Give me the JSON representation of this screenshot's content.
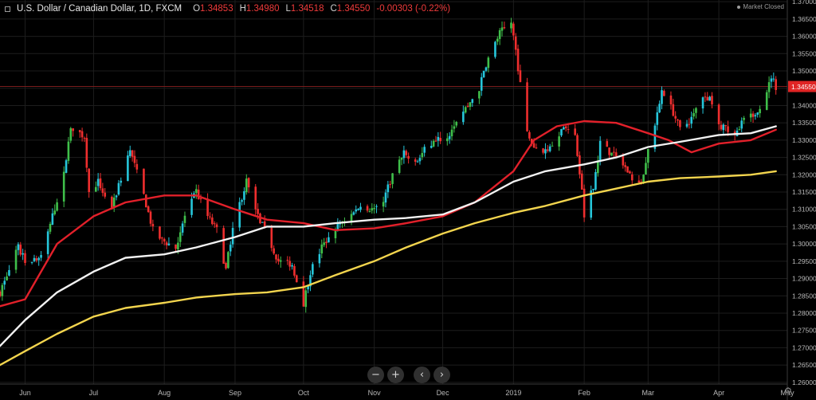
{
  "header": {
    "symbol": "U.S. Dollar / Canadian Dollar, 1D, FXCM",
    "open_label": "O",
    "open": "1.34853",
    "high_label": "H",
    "high": "1.34980",
    "low_label": "L",
    "low": "1.34518",
    "close_label": "C",
    "close": "1.34550",
    "change": "-0.00303 (-0.22%)"
  },
  "market_status": "Market Closed",
  "nav_buttons": {
    "zoom_out": "−",
    "zoom_in": "+",
    "scroll_left": "‹",
    "scroll_right": "›"
  },
  "colors": {
    "bg": "#000000",
    "up": "#3fbf4a",
    "up_alt": "#26c6da",
    "down": "#ef2e2e",
    "ma_red": "#e2202a",
    "ma_white": "#f2f2f2",
    "ma_yellow": "#f3d54e",
    "last_price_bg": "#e02424"
  },
  "chart_data": {
    "type": "candlestick",
    "title": "U.S. Dollar / Canadian Dollar, 1D, FXCM",
    "x_tick_labels": [
      "Jun",
      "Jul",
      "Aug",
      "Sep",
      "Oct",
      "Nov",
      "Dec",
      "2019",
      "Feb",
      "Mar",
      "Apr",
      "May"
    ],
    "y_tick_labels": [
      "1.37000",
      "1.36500",
      "1.36000",
      "1.35500",
      "1.35000",
      "1.34500",
      "1.34000",
      "1.33500",
      "1.33000",
      "1.32500",
      "1.32000",
      "1.31500",
      "1.31000",
      "1.30500",
      "1.30000",
      "1.29500",
      "1.29000",
      "1.28500",
      "1.28000",
      "1.27500",
      "1.27000",
      "1.26500",
      "1.26000"
    ],
    "ylim": [
      1.2595,
      1.3705
    ],
    "last_price": "1.34550",
    "last_price_value": 1.3455,
    "price_path": [
      {
        "d": "2018-05-21",
        "c": 1.286
      },
      {
        "d": "2018-05-29",
        "c": 1.299
      },
      {
        "d": "2018-06-01",
        "c": 1.295
      },
      {
        "d": "2018-06-08",
        "c": 1.296
      },
      {
        "d": "2018-06-13",
        "c": 1.308
      },
      {
        "d": "2018-06-18",
        "c": 1.32
      },
      {
        "d": "2018-06-21",
        "c": 1.334
      },
      {
        "d": "2018-06-27",
        "c": 1.331
      },
      {
        "d": "2018-06-29",
        "c": 1.315
      },
      {
        "d": "2018-07-03",
        "c": 1.318
      },
      {
        "d": "2018-07-09",
        "c": 1.31
      },
      {
        "d": "2018-07-12",
        "c": 1.317
      },
      {
        "d": "2018-07-17",
        "c": 1.327
      },
      {
        "d": "2018-07-23",
        "c": 1.314
      },
      {
        "d": "2018-07-27",
        "c": 1.304
      },
      {
        "d": "2018-07-31",
        "c": 1.301
      },
      {
        "d": "2018-08-06",
        "c": 1.299
      },
      {
        "d": "2018-08-10",
        "c": 1.308
      },
      {
        "d": "2018-08-15",
        "c": 1.315
      },
      {
        "d": "2018-08-20",
        "c": 1.308
      },
      {
        "d": "2018-08-24",
        "c": 1.304
      },
      {
        "d": "2018-08-28",
        "c": 1.2925
      },
      {
        "d": "2018-08-31",
        "c": 1.305
      },
      {
        "d": "2018-09-06",
        "c": 1.318
      },
      {
        "d": "2018-09-11",
        "c": 1.308
      },
      {
        "d": "2018-09-14",
        "c": 1.304
      },
      {
        "d": "2018-09-20",
        "c": 1.295
      },
      {
        "d": "2018-09-26",
        "c": 1.294
      },
      {
        "d": "2018-10-01",
        "c": 1.283
      },
      {
        "d": "2018-10-04",
        "c": 1.292
      },
      {
        "d": "2018-10-09",
        "c": 1.299
      },
      {
        "d": "2018-10-12",
        "c": 1.302
      },
      {
        "d": "2018-10-17",
        "c": 1.306
      },
      {
        "d": "2018-10-23",
        "c": 1.309
      },
      {
        "d": "2018-10-26",
        "c": 1.311
      },
      {
        "d": "2018-11-01",
        "c": 1.31
      },
      {
        "d": "2018-11-05",
        "c": 1.313
      },
      {
        "d": "2018-11-09",
        "c": 1.32
      },
      {
        "d": "2018-11-14",
        "c": 1.326
      },
      {
        "d": "2018-11-19",
        "c": 1.323
      },
      {
        "d": "2018-11-23",
        "c": 1.327
      },
      {
        "d": "2018-11-28",
        "c": 1.33
      },
      {
        "d": "2018-12-03",
        "c": 1.331
      },
      {
        "d": "2018-12-07",
        "c": 1.336
      },
      {
        "d": "2018-12-12",
        "c": 1.34
      },
      {
        "d": "2018-12-17",
        "c": 1.345
      },
      {
        "d": "2018-12-20",
        "c": 1.352
      },
      {
        "d": "2018-12-26",
        "c": 1.361
      },
      {
        "d": "2018-12-31",
        "c": 1.364
      },
      {
        "d": "2019-01-02",
        "c": 1.356
      },
      {
        "d": "2019-01-04",
        "c": 1.346
      },
      {
        "d": "2019-01-07",
        "c": 1.332
      },
      {
        "d": "2019-01-10",
        "c": 1.328
      },
      {
        "d": "2019-01-15",
        "c": 1.327
      },
      {
        "d": "2019-01-18",
        "c": 1.329
      },
      {
        "d": "2019-01-23",
        "c": 1.334
      },
      {
        "d": "2019-01-28",
        "c": 1.331
      },
      {
        "d": "2019-01-31",
        "c": 1.315
      },
      {
        "d": "2019-02-01",
        "c": 1.308
      },
      {
        "d": "2019-02-05",
        "c": 1.317
      },
      {
        "d": "2019-02-08",
        "c": 1.329
      },
      {
        "d": "2019-02-13",
        "c": 1.326
      },
      {
        "d": "2019-02-18",
        "c": 1.323
      },
      {
        "d": "2019-02-22",
        "c": 1.319
      },
      {
        "d": "2019-02-26",
        "c": 1.317
      },
      {
        "d": "2019-03-01",
        "c": 1.328
      },
      {
        "d": "2019-03-05",
        "c": 1.337
      },
      {
        "d": "2019-03-07",
        "c": 1.345
      },
      {
        "d": "2019-03-12",
        "c": 1.338
      },
      {
        "d": "2019-03-15",
        "c": 1.333
      },
      {
        "d": "2019-03-20",
        "c": 1.336
      },
      {
        "d": "2019-03-25",
        "c": 1.343
      },
      {
        "d": "2019-03-28",
        "c": 1.342
      },
      {
        "d": "2019-04-02",
        "c": 1.334
      },
      {
        "d": "2019-04-08",
        "c": 1.331
      },
      {
        "d": "2019-04-12",
        "c": 1.336
      },
      {
        "d": "2019-04-17",
        "c": 1.338
      },
      {
        "d": "2019-04-19",
        "c": 1.34
      },
      {
        "d": "2019-04-23",
        "c": 1.346
      },
      {
        "d": "2019-04-24",
        "c": 1.3485
      },
      {
        "d": "2019-04-26",
        "c": 1.3455
      }
    ],
    "series": [
      {
        "type": "line",
        "color": "#e2202a",
        "points": [
          [
            "2018-05-21",
            1.282
          ],
          [
            "2018-06-01",
            1.284
          ],
          [
            "2018-06-15",
            1.3
          ],
          [
            "2018-07-01",
            1.308
          ],
          [
            "2018-07-15",
            1.312
          ],
          [
            "2018-08-01",
            1.314
          ],
          [
            "2018-08-15",
            1.314
          ],
          [
            "2018-09-01",
            1.31
          ],
          [
            "2018-09-15",
            1.307
          ],
          [
            "2018-10-01",
            1.306
          ],
          [
            "2018-10-15",
            1.304
          ],
          [
            "2018-11-01",
            1.3045
          ],
          [
            "2018-11-15",
            1.306
          ],
          [
            "2018-12-01",
            1.308
          ],
          [
            "2018-12-15",
            1.312
          ],
          [
            "2019-01-01",
            1.321
          ],
          [
            "2019-01-10",
            1.33
          ],
          [
            "2019-01-20",
            1.334
          ],
          [
            "2019-02-01",
            1.3355
          ],
          [
            "2019-02-15",
            1.335
          ],
          [
            "2019-03-01",
            1.332
          ],
          [
            "2019-03-10",
            1.33
          ],
          [
            "2019-03-20",
            1.3265
          ],
          [
            "2019-04-01",
            1.329
          ],
          [
            "2019-04-15",
            1.33
          ],
          [
            "2019-04-26",
            1.333
          ]
        ]
      },
      {
        "type": "line",
        "color": "#f2f2f2",
        "points": [
          [
            "2018-05-21",
            1.2705
          ],
          [
            "2018-06-01",
            1.278
          ],
          [
            "2018-06-15",
            1.286
          ],
          [
            "2018-07-01",
            1.292
          ],
          [
            "2018-07-15",
            1.296
          ],
          [
            "2018-08-01",
            1.297
          ],
          [
            "2018-08-15",
            1.299
          ],
          [
            "2018-09-01",
            1.302
          ],
          [
            "2018-09-15",
            1.305
          ],
          [
            "2018-10-01",
            1.305
          ],
          [
            "2018-10-15",
            1.306
          ],
          [
            "2018-11-01",
            1.307
          ],
          [
            "2018-11-15",
            1.3075
          ],
          [
            "2018-12-01",
            1.3085
          ],
          [
            "2018-12-15",
            1.312
          ],
          [
            "2019-01-01",
            1.318
          ],
          [
            "2019-01-15",
            1.321
          ],
          [
            "2019-02-01",
            1.323
          ],
          [
            "2019-02-15",
            1.325
          ],
          [
            "2019-03-01",
            1.328
          ],
          [
            "2019-03-15",
            1.3295
          ],
          [
            "2019-04-01",
            1.3315
          ],
          [
            "2019-04-15",
            1.332
          ],
          [
            "2019-04-26",
            1.334
          ]
        ]
      },
      {
        "type": "line",
        "color": "#f3d54e",
        "points": [
          [
            "2018-05-21",
            1.265
          ],
          [
            "2018-06-01",
            1.269
          ],
          [
            "2018-06-15",
            1.274
          ],
          [
            "2018-07-01",
            1.279
          ],
          [
            "2018-07-15",
            1.2815
          ],
          [
            "2018-08-01",
            1.283
          ],
          [
            "2018-08-15",
            1.2845
          ],
          [
            "2018-09-01",
            1.2855
          ],
          [
            "2018-09-15",
            1.286
          ],
          [
            "2018-10-01",
            1.2875
          ],
          [
            "2018-10-15",
            1.291
          ],
          [
            "2018-11-01",
            1.295
          ],
          [
            "2018-11-15",
            1.299
          ],
          [
            "2018-12-01",
            1.303
          ],
          [
            "2018-12-15",
            1.306
          ],
          [
            "2019-01-01",
            1.309
          ],
          [
            "2019-01-15",
            1.311
          ],
          [
            "2019-02-01",
            1.314
          ],
          [
            "2019-02-15",
            1.316
          ],
          [
            "2019-03-01",
            1.318
          ],
          [
            "2019-03-15",
            1.319
          ],
          [
            "2019-04-01",
            1.3195
          ],
          [
            "2019-04-15",
            1.32
          ],
          [
            "2019-04-26",
            1.321
          ]
        ]
      }
    ]
  }
}
